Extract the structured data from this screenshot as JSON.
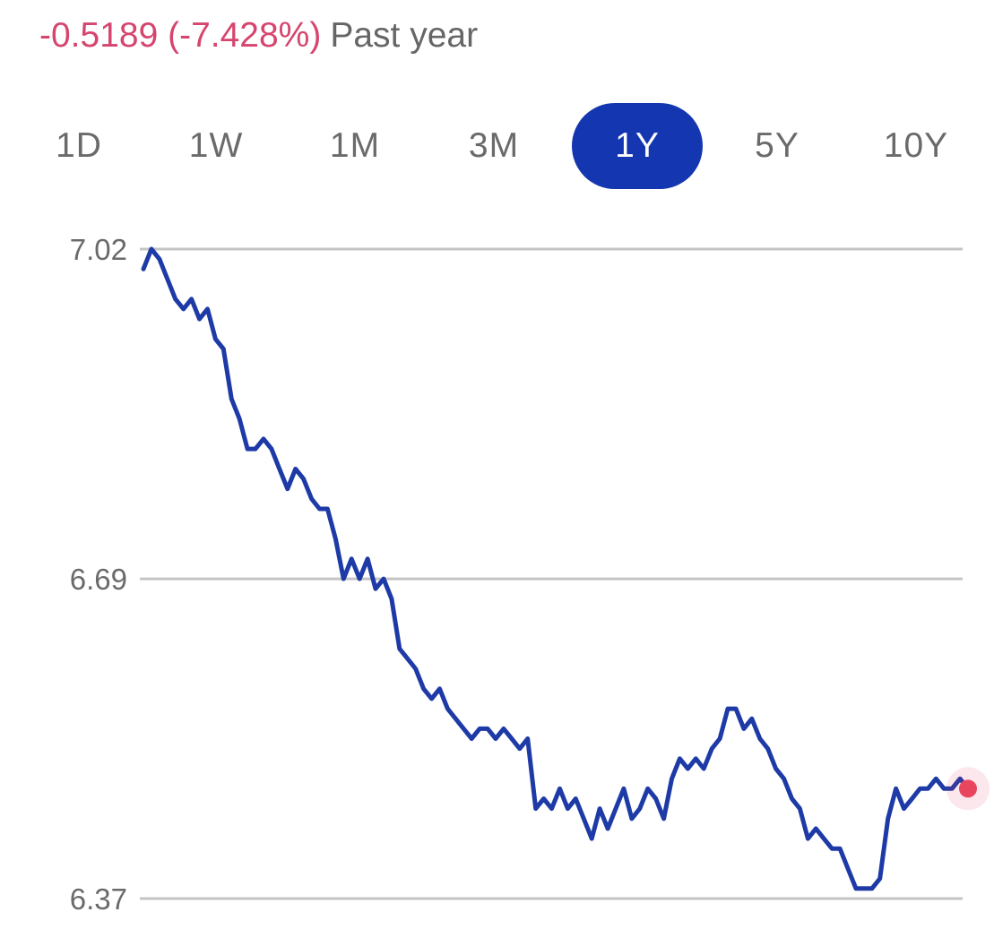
{
  "header": {
    "change": "-0.5189 (-7.428%)",
    "period": "Past year",
    "change_color": "#d6456d"
  },
  "range_tabs": {
    "items": [
      "1D",
      "1W",
      "1M",
      "3M",
      "1Y",
      "5Y",
      "10Y"
    ],
    "selected": "1Y",
    "active_color": "#1436b0"
  },
  "chart_data": {
    "type": "line",
    "title": "",
    "xlabel": "",
    "ylabel": "",
    "ylim": [
      6.37,
      7.02
    ],
    "y_ticks": [
      "7.02",
      "6.69",
      "6.37"
    ],
    "grid": true,
    "line_color": "#1d3aa6",
    "end_marker_color": "#e8455f",
    "series": [
      {
        "values": [
          7.0,
          7.02,
          7.01,
          6.99,
          6.97,
          6.96,
          6.97,
          6.95,
          6.96,
          6.93,
          6.92,
          6.87,
          6.85,
          6.82,
          6.82,
          6.83,
          6.82,
          6.8,
          6.78,
          6.8,
          6.79,
          6.77,
          6.76,
          6.76,
          6.73,
          6.69,
          6.71,
          6.69,
          6.71,
          6.68,
          6.69,
          6.67,
          6.62,
          6.61,
          6.6,
          6.58,
          6.57,
          6.58,
          6.56,
          6.55,
          6.54,
          6.53,
          6.54,
          6.54,
          6.53,
          6.54,
          6.53,
          6.52,
          6.53,
          6.46,
          6.47,
          6.46,
          6.48,
          6.46,
          6.47,
          6.45,
          6.43,
          6.46,
          6.44,
          6.46,
          6.48,
          6.45,
          6.46,
          6.48,
          6.47,
          6.45,
          6.49,
          6.51,
          6.5,
          6.51,
          6.5,
          6.52,
          6.53,
          6.56,
          6.56,
          6.54,
          6.55,
          6.53,
          6.52,
          6.5,
          6.49,
          6.47,
          6.46,
          6.43,
          6.44,
          6.43,
          6.42,
          6.42,
          6.4,
          6.38,
          6.38,
          6.38,
          6.39,
          6.45,
          6.48,
          6.46,
          6.47,
          6.48,
          6.48,
          6.49,
          6.48,
          6.48,
          6.49,
          6.48
        ]
      }
    ]
  }
}
